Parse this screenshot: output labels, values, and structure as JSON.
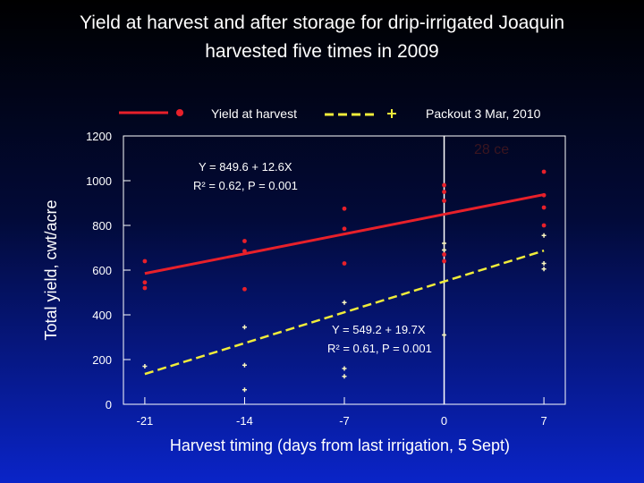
{
  "title": {
    "line1": "Yield at harvest and after storage for drip-irrigated Joaquin",
    "line2": "harvested five times in 2009"
  },
  "colors": {
    "series_harvest": "#e8202a",
    "series_packout": "#f0ec3a",
    "text": "#ffffff"
  },
  "chart_data": {
    "type": "scatter",
    "title": "Yield at harvest and after storage for drip-irrigated Joaquin harvested five times in 2009",
    "xlabel": "Harvest timing (days from last irrigation, 5 Sept)",
    "ylabel": "Total yield, cwt/acre",
    "xlim": [
      -22.5,
      8.5
    ],
    "ylim": [
      0,
      1200
    ],
    "x_ticks": [
      -21,
      -14,
      -7,
      0,
      7
    ],
    "y_ticks": [
      0,
      200,
      400,
      600,
      800,
      1000,
      1200
    ],
    "grid": false,
    "legend_position": "top",
    "series": [
      {
        "name": "Yield at harvest",
        "marker": "circle",
        "line_style": "solid",
        "color": "#e8202a",
        "points": [
          [
            -21,
            640
          ],
          [
            -21,
            545
          ],
          [
            -21,
            520
          ],
          [
            -14,
            730
          ],
          [
            -14,
            685
          ],
          [
            -14,
            515
          ],
          [
            -7,
            875
          ],
          [
            -7,
            785
          ],
          [
            -7,
            630
          ],
          [
            0,
            980
          ],
          [
            0,
            950
          ],
          [
            0,
            910
          ],
          [
            0,
            670
          ],
          [
            0,
            640
          ],
          [
            7,
            1040
          ],
          [
            7,
            935
          ],
          [
            7,
            880
          ],
          [
            7,
            800
          ]
        ],
        "fit": {
          "equation": "Y = 849.6 + 12.6X",
          "stats": "R² = 0.62, P = 0.001",
          "intercept": 849.6,
          "slope": 12.6
        }
      },
      {
        "name": "Packout 3 Mar, 2010",
        "marker": "plus",
        "line_style": "dashed",
        "color": "#f0ec3a",
        "points": [
          [
            -21,
            170
          ],
          [
            -14,
            345
          ],
          [
            -14,
            175
          ],
          [
            -14,
            65
          ],
          [
            -7,
            455
          ],
          [
            -7,
            160
          ],
          [
            -7,
            125
          ],
          [
            0,
            720
          ],
          [
            0,
            690
          ],
          [
            0,
            310
          ],
          [
            7,
            755
          ],
          [
            7,
            630
          ],
          [
            7,
            605
          ]
        ],
        "fit": {
          "equation": "Y = 549.2 + 19.7X",
          "stats": "R² = 0.61, P = 0.001",
          "intercept": 549.2,
          "slope": 19.7
        }
      }
    ],
    "annotations": {
      "faint_overlay": "28 ce"
    }
  }
}
